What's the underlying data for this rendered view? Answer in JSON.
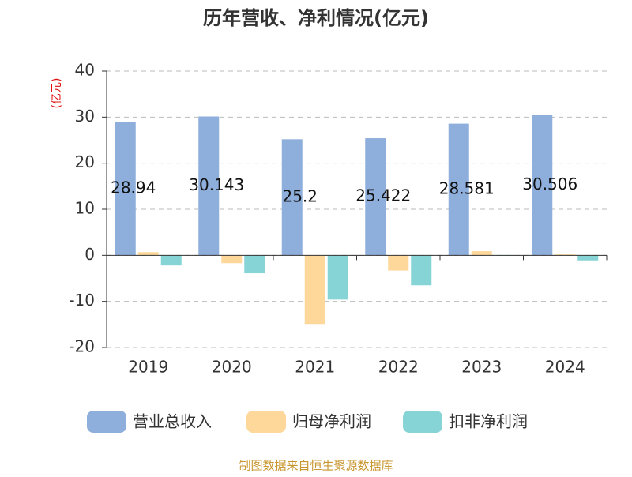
{
  "chart_data": {
    "type": "bar",
    "title": "历年营收、净利情况(亿元)",
    "y_label": "(亿元)",
    "categories": [
      "2019",
      "2020",
      "2021",
      "2022",
      "2023",
      "2024"
    ],
    "series": [
      {
        "name": "营业总收入",
        "color": "#8eaedb",
        "values": [
          28.94,
          30.143,
          25.2,
          25.422,
          28.581,
          30.506
        ],
        "show_labels": true
      },
      {
        "name": "归母净利润",
        "color": "#fdd89a",
        "values": [
          0.7,
          -1.7,
          -14.9,
          -3.3,
          0.9,
          0.2
        ]
      },
      {
        "name": "扣非净利润",
        "color": "#86d4d6",
        "values": [
          -2.2,
          -3.9,
          -9.6,
          -6.5,
          -0.1,
          -1.1
        ]
      }
    ],
    "ylim": [
      -20,
      40
    ],
    "yticks": [
      -20,
      -10,
      0,
      10,
      20,
      30,
      40
    ],
    "grid": true,
    "source": "制图数据来自恒生聚源数据库"
  }
}
